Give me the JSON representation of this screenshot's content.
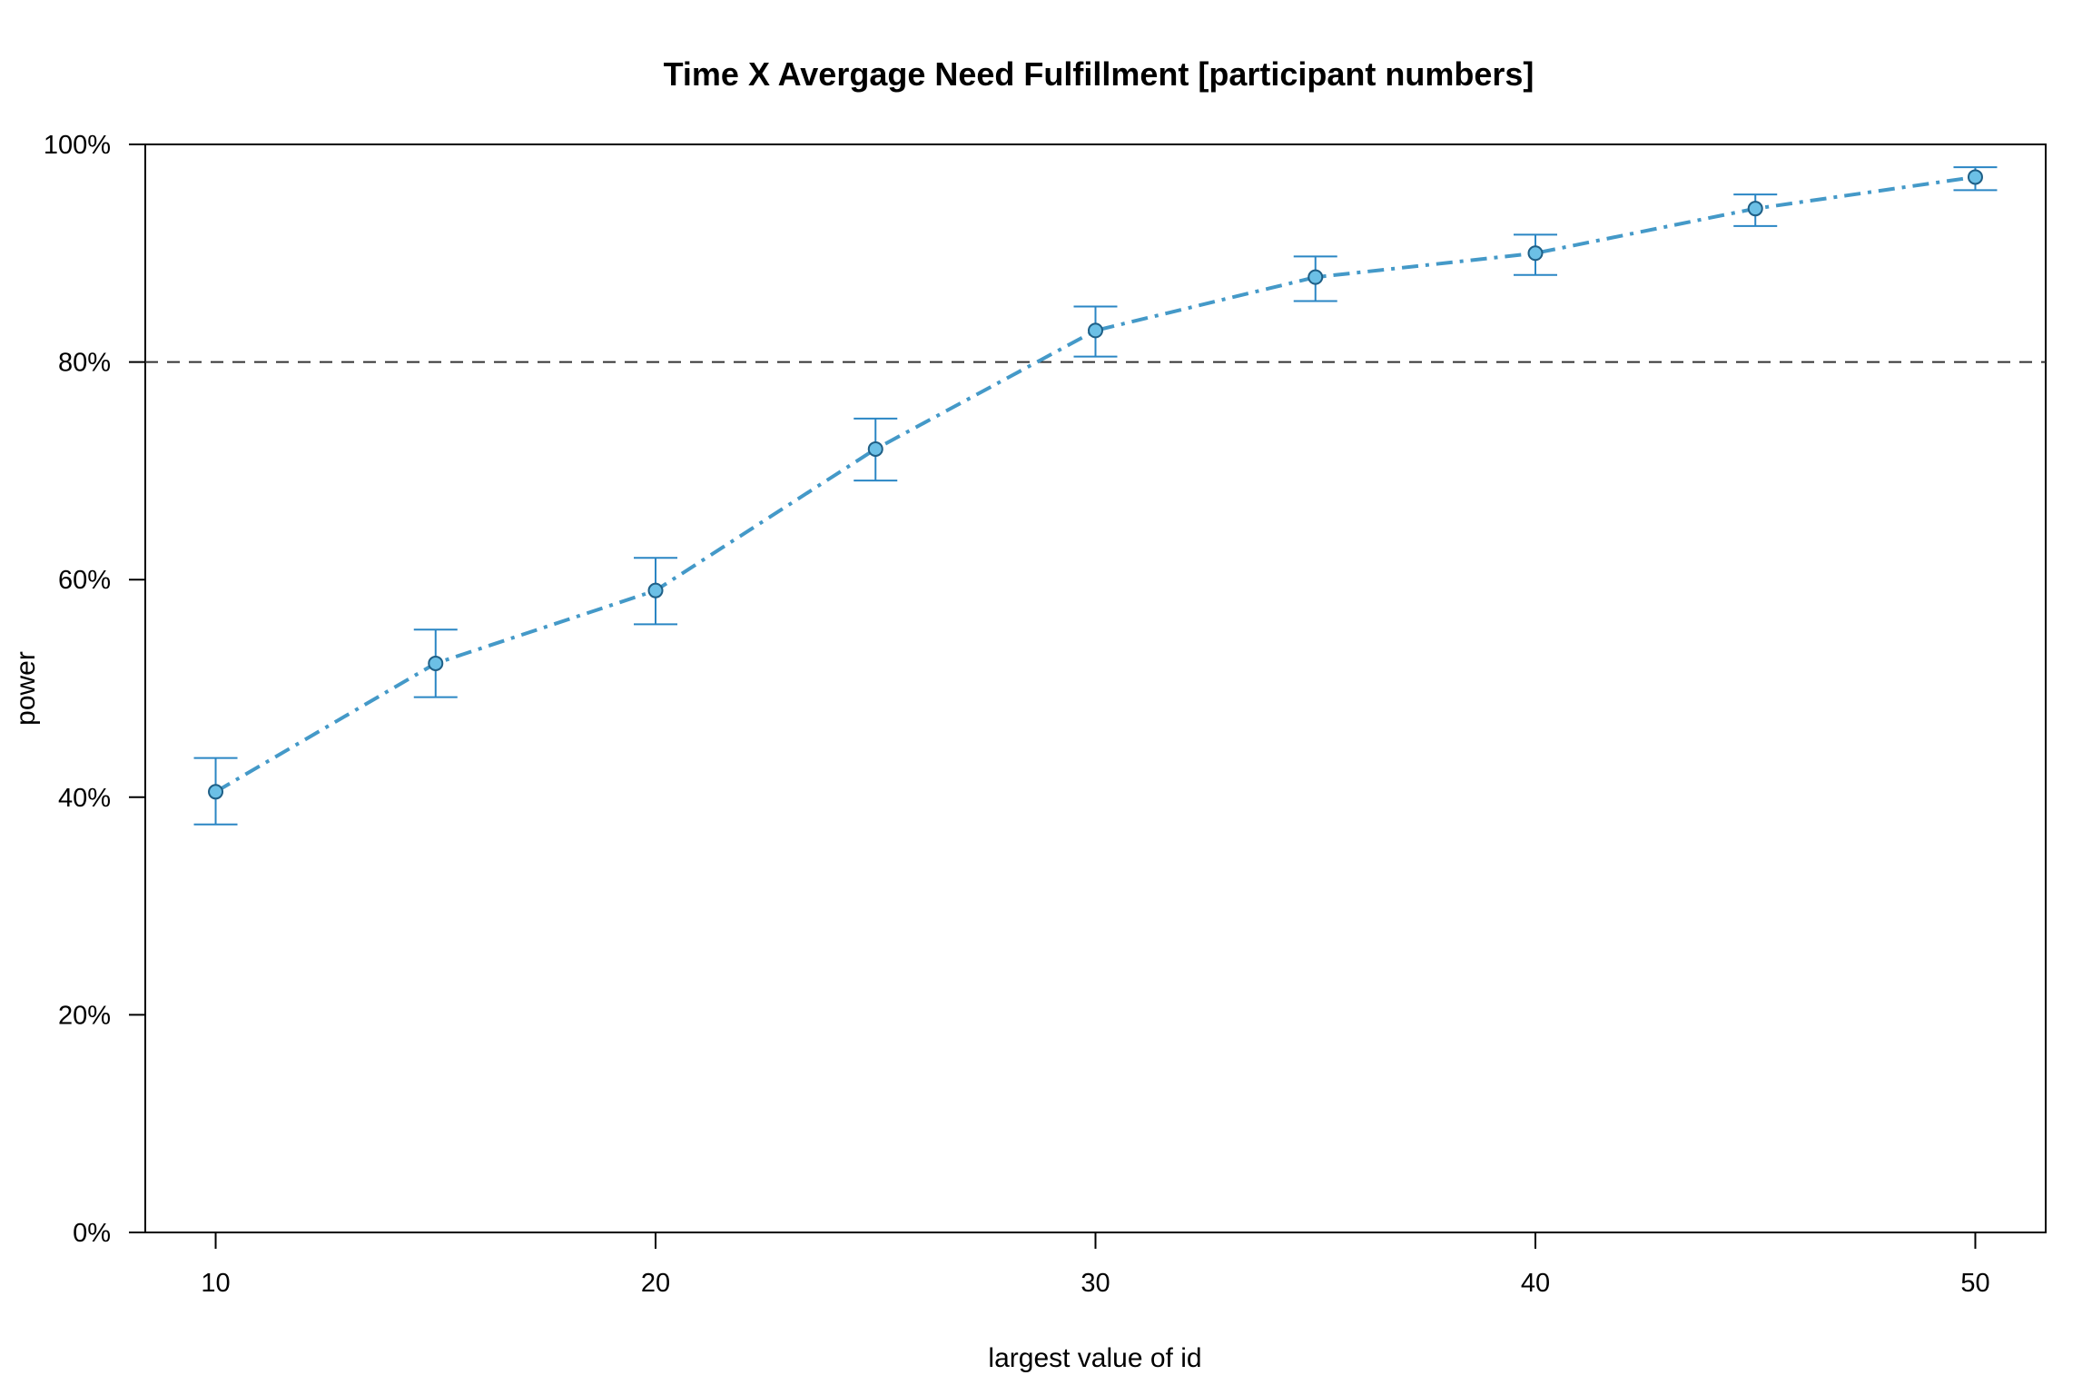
{
  "chart_data": {
    "type": "line",
    "title": "Time X Avergage Need Fulfillment [participant numbers]",
    "xlabel": "largest value of id",
    "ylabel": "power",
    "xlim": [
      8.4,
      51.6
    ],
    "ylim": [
      0,
      100
    ],
    "x_ticks": [
      10,
      20,
      30,
      40,
      50
    ],
    "y_ticks": [
      0,
      20,
      40,
      60,
      80,
      100
    ],
    "y_tick_labels": [
      "0%",
      "20%",
      "40%",
      "60%",
      "80%",
      "100%"
    ],
    "reference_line": {
      "y": 80,
      "style": "dashed",
      "color": "#333333"
    },
    "grid": false,
    "series": [
      {
        "color": "#4499c8",
        "marker_fill": "#6cc0e6",
        "error_color": "#2a86c4",
        "line_style": "dot-dash",
        "points": [
          {
            "x": 10,
            "y": 40.5,
            "lower": 37.5,
            "upper": 43.6
          },
          {
            "x": 15,
            "y": 52.3,
            "lower": 49.2,
            "upper": 55.4
          },
          {
            "x": 20,
            "y": 59.0,
            "lower": 55.9,
            "upper": 62.0
          },
          {
            "x": 25,
            "y": 72.0,
            "lower": 69.1,
            "upper": 74.8
          },
          {
            "x": 30,
            "y": 82.9,
            "lower": 80.5,
            "upper": 85.1
          },
          {
            "x": 35,
            "y": 87.8,
            "lower": 85.6,
            "upper": 89.7
          },
          {
            "x": 40,
            "y": 90.0,
            "lower": 88.0,
            "upper": 91.7
          },
          {
            "x": 45,
            "y": 94.1,
            "lower": 92.5,
            "upper": 95.4
          },
          {
            "x": 50,
            "y": 97.0,
            "lower": 95.8,
            "upper": 97.9
          }
        ]
      }
    ]
  }
}
